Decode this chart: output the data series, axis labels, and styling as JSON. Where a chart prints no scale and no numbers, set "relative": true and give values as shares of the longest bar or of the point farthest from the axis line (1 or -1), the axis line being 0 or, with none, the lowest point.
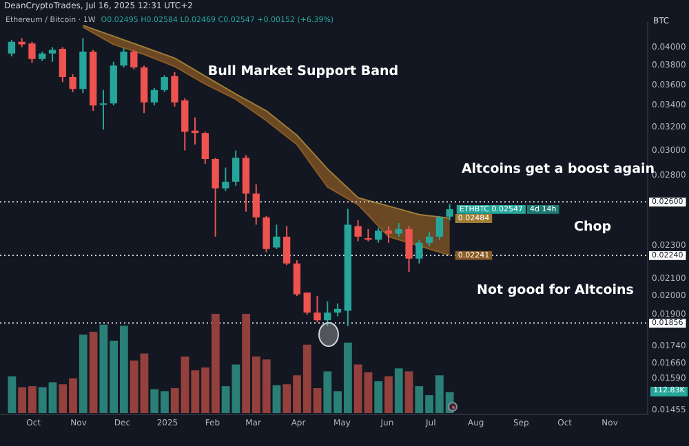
{
  "chart_data": [
    {
      "type": "candlestick",
      "title": "Ethereum / Bitcoin · 1W",
      "subtitle": "O0.02495 H0.02584 L0.02469 C0.02547 +0.00152 (+6.39%)",
      "ylabel": "BTC",
      "annotations": [
        "DeanCryptoTrades, Jul 16, 2025 12:31 UTC+2",
        "Bull Market Support Band",
        "Altcoins get a boost again",
        "Chop",
        "Not good for Altcoins",
        "4d 14h",
        {
          "text": "ETHBTC 0.02547",
          "x": "2025-07-14",
          "y": 0.02547
        }
      ],
      "x": [
        "2024-09-16",
        "2024-09-23",
        "2024-09-30",
        "2024-10-07",
        "2024-10-14",
        "2024-10-21",
        "2024-10-28",
        "2024-11-04",
        "2024-11-11",
        "2024-11-18",
        "2024-11-25",
        "2024-12-02",
        "2024-12-09",
        "2024-12-16",
        "2024-12-23",
        "2024-12-30",
        "2025-01-06",
        "2025-01-13",
        "2025-01-20",
        "2025-01-27",
        "2025-02-03",
        "2025-02-10",
        "2025-02-17",
        "2025-02-24",
        "2025-03-03",
        "2025-03-10",
        "2025-03-17",
        "2025-03-24",
        "2025-03-31",
        "2025-04-07",
        "2025-04-14",
        "2025-04-21",
        "2025-04-28",
        "2025-05-05",
        "2025-05-12",
        "2025-05-19",
        "2025-05-26",
        "2025-06-02",
        "2025-06-09",
        "2025-06-16",
        "2025-06-23",
        "2025-06-30",
        "2025-07-07",
        "2025-07-14"
      ],
      "ohlc": [
        [
          0.0393,
          0.0408,
          0.039,
          0.0406
        ],
        [
          0.0406,
          0.041,
          0.04,
          0.0403
        ],
        [
          0.0404,
          0.0406,
          0.0383,
          0.0387
        ],
        [
          0.0387,
          0.0395,
          0.0385,
          0.0393
        ],
        [
          0.0393,
          0.04,
          0.0384,
          0.0397
        ],
        [
          0.0398,
          0.04,
          0.0363,
          0.0368
        ],
        [
          0.0368,
          0.0371,
          0.0353,
          0.0356
        ],
        [
          0.0356,
          0.041,
          0.0352,
          0.0395
        ],
        [
          0.0395,
          0.0397,
          0.0335,
          0.034
        ],
        [
          0.0341,
          0.0355,
          0.0318,
          0.0342
        ],
        [
          0.0342,
          0.0384,
          0.034,
          0.038
        ],
        [
          0.038,
          0.0399,
          0.0378,
          0.0395
        ],
        [
          0.0395,
          0.0397,
          0.0376,
          0.0378
        ],
        [
          0.0378,
          0.038,
          0.0333,
          0.0343
        ],
        [
          0.0343,
          0.0357,
          0.034,
          0.0355
        ],
        [
          0.0355,
          0.037,
          0.0353,
          0.0368
        ],
        [
          0.0369,
          0.0373,
          0.0339,
          0.0343
        ],
        [
          0.0345,
          0.0347,
          0.03,
          0.0316
        ],
        [
          0.0317,
          0.0329,
          0.0305,
          0.0315
        ],
        [
          0.0315,
          0.0316,
          0.0289,
          0.0293
        ],
        [
          0.0293,
          0.0294,
          0.0236,
          0.027
        ],
        [
          0.027,
          0.0286,
          0.0268,
          0.0275
        ],
        [
          0.0275,
          0.03,
          0.0272,
          0.0294
        ],
        [
          0.0294,
          0.0296,
          0.0253,
          0.0266
        ],
        [
          0.0266,
          0.0273,
          0.0244,
          0.0249
        ],
        [
          0.0249,
          0.025,
          0.0226,
          0.0228
        ],
        [
          0.0229,
          0.0244,
          0.0228,
          0.0236
        ],
        [
          0.0236,
          0.0243,
          0.0218,
          0.0219
        ],
        [
          0.0219,
          0.0221,
          0.02,
          0.0201
        ],
        [
          0.0202,
          0.0202,
          0.019,
          0.0191
        ],
        [
          0.0191,
          0.02,
          0.0186,
          0.0187
        ],
        [
          0.0187,
          0.0197,
          0.0184,
          0.0191
        ],
        [
          0.0191,
          0.0196,
          0.0189,
          0.0193
        ],
        [
          0.0192,
          0.0255,
          0.0184,
          0.0244
        ],
        [
          0.0243,
          0.0247,
          0.0233,
          0.0236
        ],
        [
          0.0235,
          0.0241,
          0.0233,
          0.0234
        ],
        [
          0.0234,
          0.0242,
          0.0232,
          0.024
        ],
        [
          0.024,
          0.0243,
          0.0232,
          0.0238
        ],
        [
          0.0238,
          0.0245,
          0.0236,
          0.0241
        ],
        [
          0.0241,
          0.0243,
          0.0214,
          0.0222
        ],
        [
          0.0222,
          0.0234,
          0.0219,
          0.0232
        ],
        [
          0.0232,
          0.0239,
          0.023,
          0.0236
        ],
        [
          0.0236,
          0.025,
          0.0234,
          0.0249
        ],
        [
          0.02495,
          0.02584,
          0.02469,
          0.02547
        ]
      ],
      "series": [
        {
          "type": "line",
          "color": "#a07c35",
          "x": [
            "2024-11-04",
            "2024-11-25",
            "2024-12-16",
            "2025-01-06",
            "2025-01-27",
            "2025-02-17",
            "2025-03-10",
            "2025-03-31",
            "2025-04-21",
            "2025-05-12",
            "2025-06-02",
            "2025-06-23",
            "2025-07-14"
          ],
          "values": [
            0.0425,
            0.04124,
            0.04,
            0.0388,
            0.0369,
            0.0351,
            0.0335,
            0.0313,
            0.0285,
            0.0263,
            0.0257,
            0.0251,
            0.02484
          ],
          "value_labels": [
            null,
            null,
            null,
            null,
            null,
            null,
            null,
            null,
            null,
            null,
            null,
            null,
            "0.02484"
          ]
        },
        {
          "type": "line",
          "color": "#8a5a25",
          "x": [
            "2024-11-04",
            "2024-11-25",
            "2024-12-16",
            "2025-01-06",
            "2025-01-27",
            "2025-02-17",
            "2025-03-10",
            "2025-03-31",
            "2025-04-21",
            "2025-05-12",
            "2025-06-02",
            "2025-06-23",
            "2025-07-14"
          ],
          "values": [
            0.0423,
            0.0403,
            0.0392,
            0.0379,
            0.0361,
            0.0346,
            0.0326,
            0.0305,
            0.0271,
            0.0258,
            0.0236,
            0.023,
            0.02241
          ],
          "lower": [
            0.0423,
            0.0403,
            0.0392,
            0.0379,
            0.0361,
            0.0346,
            0.0326,
            0.0305,
            0.0271,
            0.0258,
            0.0236,
            0.023,
            0.02241
          ],
          "upper": [
            0.0425,
            0.04124,
            0.04,
            0.0388,
            0.0369,
            0.0351,
            0.0335,
            0.0313,
            0.0285,
            0.0263,
            0.0257,
            0.0251,
            0.02484
          ],
          "value_labels": [
            null,
            null,
            null,
            null,
            null,
            null,
            null,
            null,
            null,
            null,
            null,
            null,
            "0.02241"
          ]
        }
      ],
      "ref_lines": [
        {
          "axis": "y",
          "value": 0.026,
          "label": "0.02600",
          "color": "#d1d4dc",
          "line_style": "dotted"
        },
        {
          "axis": "y",
          "value": 0.0224,
          "label": "0.02240",
          "color": "#d1d4dc",
          "line_style": "dotted"
        },
        {
          "axis": "y",
          "value": 0.01856,
          "label": "0.01856",
          "color": "#d1d4dc",
          "line_style": "dotted"
        }
      ],
      "log": true,
      "marker": "none",
      "grid": false,
      "xlim": [
        "2024-09-08",
        "2025-11-27"
      ],
      "xticks": [
        {
          "value": "2024-10-01",
          "label": "Oct"
        },
        {
          "value": "2024-11-01",
          "label": "Nov"
        },
        {
          "value": "2024-12-01",
          "label": "Dec"
        },
        {
          "value": "2025-01-01",
          "label": "2025"
        },
        {
          "value": "2025-02-01",
          "label": "Feb"
        },
        {
          "value": "2025-03-01",
          "label": "Mar"
        },
        {
          "value": "2025-04-01",
          "label": "Apr"
        },
        {
          "value": "2025-05-01",
          "label": "May"
        },
        {
          "value": "2025-06-01",
          "label": "Jun"
        },
        {
          "value": "2025-07-01",
          "label": "Jul"
        },
        {
          "value": "2025-08-01",
          "label": "Aug"
        },
        {
          "value": "2025-09-01",
          "label": "Sep"
        },
        {
          "value": "2025-10-01",
          "label": "Oct"
        },
        {
          "value": "2025-11-01",
          "label": "Nov"
        }
      ],
      "ylim": [
        0.0144,
        0.0428
      ],
      "yticks": [
        {
          "value": 0.04,
          "label": "0.04000"
        },
        {
          "value": 0.038,
          "label": "0.03800"
        },
        {
          "value": 0.036,
          "label": "0.03600"
        },
        {
          "value": 0.034,
          "label": "0.03400"
        },
        {
          "value": 0.032,
          "label": "0.03200"
        },
        {
          "value": 0.03,
          "label": "0.03000"
        },
        {
          "value": 0.028,
          "label": "0.02800"
        },
        {
          "value": 0.023,
          "label": "0.02300"
        },
        {
          "value": 0.021,
          "label": "0.02100"
        },
        {
          "value": 0.02,
          "label": "0.02000"
        },
        {
          "value": 0.019,
          "label": "0.01900"
        },
        {
          "value": 0.0174,
          "label": "0.01740"
        },
        {
          "value": 0.0166,
          "label": "0.01660"
        },
        {
          "value": 0.0159,
          "label": "0.01590"
        },
        {
          "value": 0.01455,
          "label": "0.01455"
        }
      ]
    },
    {
      "type": "bar",
      "relative": true,
      "tick_labels": false,
      "annotations": [
        "112.83K"
      ],
      "categories": [
        null,
        null,
        null,
        null,
        null,
        null,
        null,
        null,
        null,
        null,
        null,
        null,
        null,
        null,
        null,
        null,
        null,
        null,
        null,
        null,
        null,
        null,
        null,
        null,
        null,
        null,
        null,
        null,
        null,
        null,
        null,
        null,
        null,
        null,
        null,
        null,
        null,
        null,
        null,
        null,
        null,
        null,
        null,
        null
      ],
      "values": [
        0.37,
        0.26,
        0.27,
        0.26,
        0.31,
        0.29,
        0.35,
        0.79,
        0.82,
        0.89,
        0.73,
        0.88,
        0.53,
        0.6,
        0.24,
        0.22,
        0.25,
        0.57,
        0.43,
        0.46,
        1,
        0.27,
        0.49,
        1,
        0.57,
        0.54,
        0.28,
        0.29,
        0.38,
        0.69,
        0.25,
        0.42,
        0.22,
        0.71,
        0.49,
        0.41,
        0.32,
        0.37,
        0.45,
        0.42,
        0.27,
        0.18,
        0.38,
        0.21
      ],
      "colors": [
        "#2a7f76",
        "#94403d",
        "#94403d",
        "#2a7f76",
        "#2a7f76",
        "#94403d",
        "#94403d",
        "#2a7f76",
        "#94403d",
        "#2a7f76",
        "#2a7f76",
        "#2a7f76",
        "#94403d",
        "#94403d",
        "#2a7f76",
        "#2a7f76",
        "#94403d",
        "#94403d",
        "#94403d",
        "#94403d",
        "#94403d",
        "#2a7f76",
        "#2a7f76",
        "#94403d",
        "#94403d",
        "#94403d",
        "#2a7f76",
        "#94403d",
        "#94403d",
        "#94403d",
        "#94403d",
        "#2a7f76",
        "#2a7f76",
        "#2a7f76",
        "#94403d",
        "#94403d",
        "#2a7f76",
        "#94403d",
        "#2a7f76",
        "#94403d",
        "#2a7f76",
        "#2a7f76",
        "#2a7f76",
        "#2a7f76"
      ]
    }
  ]
}
